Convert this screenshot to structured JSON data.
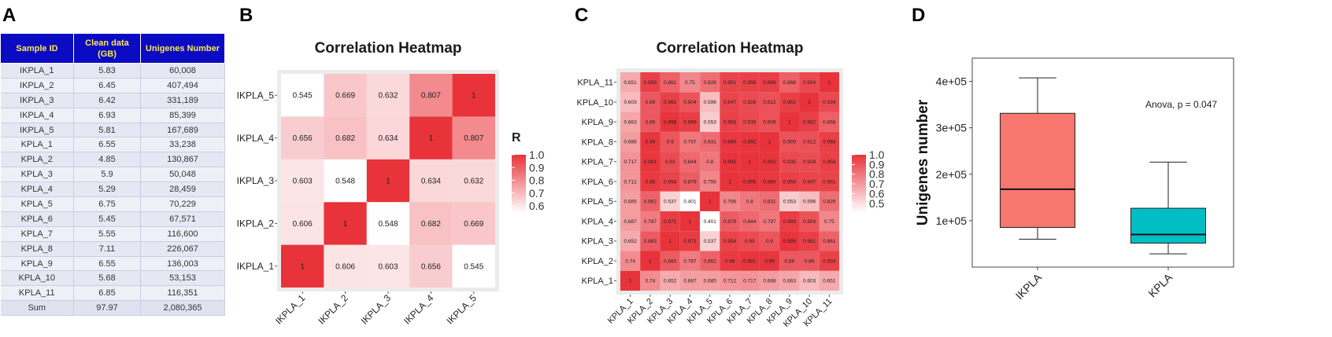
{
  "panels": {
    "a": "A",
    "b": "B",
    "c": "C",
    "d": "D"
  },
  "table": {
    "headers": [
      "Sample ID",
      "Clean data (GB)",
      "Unigenes Number"
    ],
    "rows": [
      [
        "IKPLA_1",
        "5.83",
        "60,008"
      ],
      [
        "IKPLA_2",
        "6.45",
        "407,494"
      ],
      [
        "IKPLA_3",
        "6.42",
        "331,189"
      ],
      [
        "IKPLA_4",
        "6.93",
        "85,399"
      ],
      [
        "IKPLA_5",
        "5.81",
        "167,689"
      ],
      [
        "KPLA_1",
        "6.55",
        "33,238"
      ],
      [
        "KPLA_2",
        "4.85",
        "130,867"
      ],
      [
        "KPLA_3",
        "5.9",
        "50,048"
      ],
      [
        "KPLA_4",
        "5.29",
        "28,459"
      ],
      [
        "KPLA_5",
        "6.75",
        "70,229"
      ],
      [
        "KPLA_6",
        "5.45",
        "67,571"
      ],
      [
        "KPLA_7",
        "5.55",
        "116,600"
      ],
      [
        "KPLA_8",
        "7.11",
        "226,067"
      ],
      [
        "KPLA_9",
        "6.55",
        "136,003"
      ],
      [
        "KPLA_10",
        "5.68",
        "53,153"
      ],
      [
        "KPLA_11",
        "6.85",
        "116,351"
      ]
    ],
    "footer": [
      "Sum",
      "97.97",
      "2,080,365"
    ]
  },
  "chart_data": [
    {
      "type": "heatmap",
      "title": "Correlation Heatmap",
      "labels": [
        "IKPLA_1",
        "IKPLA_2",
        "IKPLA_3",
        "IKPLA_4",
        "IKPLA_5"
      ],
      "matrix": [
        [
          1,
          0.606,
          0.603,
          0.656,
          0.545
        ],
        [
          0.606,
          1,
          0.548,
          0.682,
          0.669
        ],
        [
          0.603,
          0.548,
          1,
          0.634,
          0.632
        ],
        [
          0.656,
          0.682,
          0.634,
          1,
          0.807
        ],
        [
          0.545,
          0.669,
          0.632,
          0.807,
          1
        ]
      ],
      "legend_title": "R",
      "legend_ticks": [
        "1.0",
        "0.9",
        "0.8",
        "0.7",
        "0.6"
      ],
      "color_range": [
        0.545,
        1
      ],
      "colors": {
        "low": "#ffffff",
        "high": "#e8333b"
      }
    },
    {
      "type": "heatmap",
      "title": "Correlation Heatmap",
      "labels": [
        "KPLA_1",
        "KPLA_2",
        "KPLA_3",
        "KPLA_4",
        "KPLA_5",
        "KPLA_6",
        "KPLA_7",
        "KPLA_8",
        "KPLA_9",
        "KPLA_10",
        "KPLA_11"
      ],
      "matrix": [
        [
          1,
          0.74,
          0.652,
          0.687,
          0.685,
          0.712,
          0.717,
          0.688,
          0.663,
          0.603,
          0.651
        ],
        [
          0.74,
          1,
          0.883,
          0.787,
          0.862,
          0.98,
          0.991,
          0.99,
          0.89,
          0.89,
          0.959
        ],
        [
          0.652,
          0.883,
          1,
          0.972,
          0.537,
          0.954,
          0.93,
          0.9,
          0.998,
          0.961,
          0.861
        ],
        [
          0.687,
          0.787,
          0.972,
          1,
          0.401,
          0.879,
          0.844,
          0.797,
          0.969,
          0.904,
          0.75
        ],
        [
          0.685,
          0.862,
          0.537,
          0.401,
          1,
          0.756,
          0.8,
          0.831,
          0.553,
          0.596,
          0.826
        ],
        [
          0.712,
          0.98,
          0.954,
          0.879,
          0.756,
          1,
          0.995,
          0.985,
          0.958,
          0.947,
          0.951
        ],
        [
          0.717,
          0.991,
          0.93,
          0.844,
          0.8,
          0.995,
          1,
          0.992,
          0.935,
          0.928,
          0.958
        ],
        [
          0.688,
          0.99,
          0.9,
          0.797,
          0.831,
          0.985,
          0.992,
          1,
          0.909,
          0.912,
          0.966
        ],
        [
          0.663,
          0.89,
          0.998,
          0.969,
          0.553,
          0.958,
          0.935,
          0.909,
          1,
          0.962,
          0.868
        ],
        [
          0.603,
          0.89,
          0.961,
          0.904,
          0.596,
          0.947,
          0.928,
          0.912,
          0.962,
          1,
          0.934
        ],
        [
          0.651,
          0.959,
          0.861,
          0.75,
          0.826,
          0.951,
          0.958,
          0.966,
          0.868,
          0.934,
          1
        ]
      ],
      "legend_title": "R",
      "legend_ticks": [
        "1.0",
        "0.9",
        "0.8",
        "0.7",
        "0.6",
        "0.5"
      ],
      "color_range": [
        0.401,
        1
      ],
      "colors": {
        "low": "#ffffff",
        "high": "#e8333b"
      }
    },
    {
      "type": "box",
      "ylabel": "Unigenes number",
      "categories": [
        "IKPLA",
        "KPLA"
      ],
      "boxes": [
        {
          "name": "IKPLA",
          "min": 60008,
          "q1": 85399,
          "median": 167689,
          "q3": 331189,
          "max": 407494,
          "color": "#f7766d"
        },
        {
          "name": "KPLA",
          "min": 28459,
          "q1": 51600,
          "median": 70229,
          "q3": 126734,
          "max": 226067,
          "color": "#00bfc4"
        }
      ],
      "ylim": [
        0,
        450000
      ],
      "yticks": [
        100000,
        200000,
        300000,
        400000
      ],
      "ytick_labels": [
        "1e+05",
        "2e+05",
        "3e+05",
        "4e+05"
      ],
      "annotation": "Anova, p = 0.047"
    }
  ]
}
